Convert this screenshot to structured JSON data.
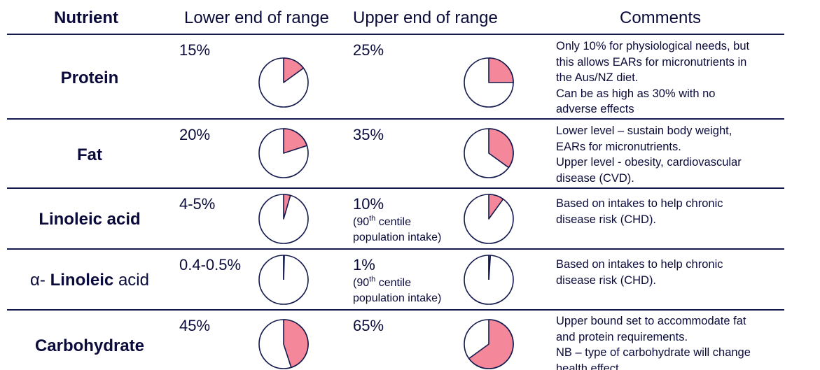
{
  "header": {
    "nutrient": "Nutrient",
    "lower": "Lower end of range",
    "upper": "Upper end of range",
    "comments": "Comments"
  },
  "rows": [
    {
      "nutrient": "Protein",
      "lower": "15%",
      "upper": "25%",
      "comment": [
        "Only 10% for physiological needs, but",
        "this allows EARs for micronutrients in",
        "the Aus/NZ diet.",
        "Can be as high as 30% with no",
        "adverse effects"
      ]
    },
    {
      "nutrient": "Fat",
      "lower": "20%",
      "upper": "35%",
      "comment": [
        "Lower level – sustain body weight,",
        "EARs for micronutrients.",
        "Upper level - obesity, cardiovascular",
        "disease (CVD)."
      ]
    },
    {
      "nutrient": "Linoleic acid",
      "lower": "4-5%",
      "upper": "10%",
      "upper_note": {
        "open": "(90",
        "sup": "th",
        "rest": " centile",
        "line2": "population intake)"
      },
      "comment": [
        "Based on intakes to help chronic",
        "disease risk (CHD)."
      ]
    },
    {
      "nutrient_prefix": "α-",
      "nutrient": "Linoleic",
      "nutrient_suffix": "acid",
      "lower": "0.4-0.5%",
      "upper": "1%",
      "upper_note": {
        "open": "(90",
        "sup": "th",
        "rest": " centile",
        "line2": "population intake)"
      },
      "comment": [
        "Based on intakes to help chronic",
        "disease risk (CHD)."
      ]
    },
    {
      "nutrient": "Carbohydrate",
      "lower": "45%",
      "upper": "65%",
      "comment": [
        "Upper bound set to accommodate fat",
        "and protein requirements.",
        "NB – type of carbohydrate will change",
        "health effect."
      ]
    }
  ],
  "chart_data": {
    "type": "pie",
    "unit": "% of energy",
    "pies": [
      {
        "nutrient": "Protein",
        "bound": "lower",
        "value": 15
      },
      {
        "nutrient": "Protein",
        "bound": "upper",
        "value": 25
      },
      {
        "nutrient": "Fat",
        "bound": "lower",
        "value": 20
      },
      {
        "nutrient": "Fat",
        "bound": "upper",
        "value": 35
      },
      {
        "nutrient": "Linoleic acid",
        "bound": "lower",
        "value": 4.5
      },
      {
        "nutrient": "Linoleic acid",
        "bound": "upper",
        "value": 10
      },
      {
        "nutrient": "α-Linoleic acid",
        "bound": "lower",
        "value": 0.45
      },
      {
        "nutrient": "α-Linoleic acid",
        "bound": "upper",
        "value": 1
      },
      {
        "nutrient": "Carbohydrate",
        "bound": "lower",
        "value": 45
      },
      {
        "nutrient": "Carbohydrate",
        "bound": "upper",
        "value": 65
      }
    ],
    "colors": {
      "slice": "#f4879a",
      "outline": "#141a4d"
    }
  }
}
